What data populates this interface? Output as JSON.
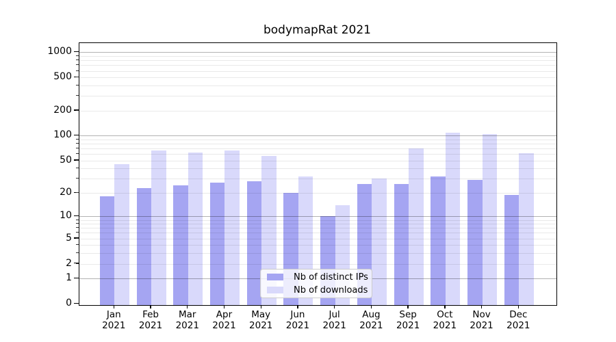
{
  "title": "bodymapRat 2021",
  "chart_data": {
    "type": "bar",
    "title": "bodymapRat 2021",
    "categories": [
      "Jan",
      "Feb",
      "Mar",
      "Apr",
      "May",
      "Jun",
      "Jul",
      "Aug",
      "Sep",
      "Oct",
      "Nov",
      "Dec"
    ],
    "category_year": "2021",
    "series": [
      {
        "name": "Nb of distinct IPs",
        "color": "#a5a5f2",
        "values": [
          18,
          23,
          25,
          27,
          28,
          20,
          10,
          26,
          26,
          32,
          29,
          19
        ]
      },
      {
        "name": "Nb of downloads",
        "color": "#d9d9fb",
        "values": [
          45,
          66,
          63,
          66,
          57,
          32,
          14,
          30,
          70,
          108,
          104,
          61
        ]
      }
    ],
    "xlabel": "",
    "ylabel": "",
    "y_scale": "log1p",
    "ylim": [
      0,
      1300
    ],
    "y_ticks": [
      {
        "value": 0,
        "label": "0"
      },
      {
        "value": 1,
        "label": "1"
      },
      {
        "value": 2,
        "label": "2"
      },
      {
        "value": 5,
        "label": "5"
      },
      {
        "value": 10,
        "label": "10"
      },
      {
        "value": 20,
        "label": "20"
      },
      {
        "value": 50,
        "label": "50"
      },
      {
        "value": 100,
        "label": "100"
      },
      {
        "value": 200,
        "label": "200"
      },
      {
        "value": 500,
        "label": "500"
      },
      {
        "value": 1000,
        "label": "1000"
      }
    ],
    "y_major_gridlines": [
      1,
      10,
      100,
      1000
    ],
    "y_minor_gridlines": [
      2,
      3,
      4,
      5,
      6,
      7,
      8,
      9,
      20,
      30,
      40,
      50,
      60,
      70,
      80,
      90,
      200,
      300,
      400,
      500,
      600,
      700,
      800,
      900
    ],
    "grid": true,
    "legend_position": "lower center",
    "colors": {
      "major_gridline": "#b3b3b3",
      "minor_gridline": "#e8e8e8",
      "spine": "#000000",
      "background": "#ffffff"
    }
  }
}
